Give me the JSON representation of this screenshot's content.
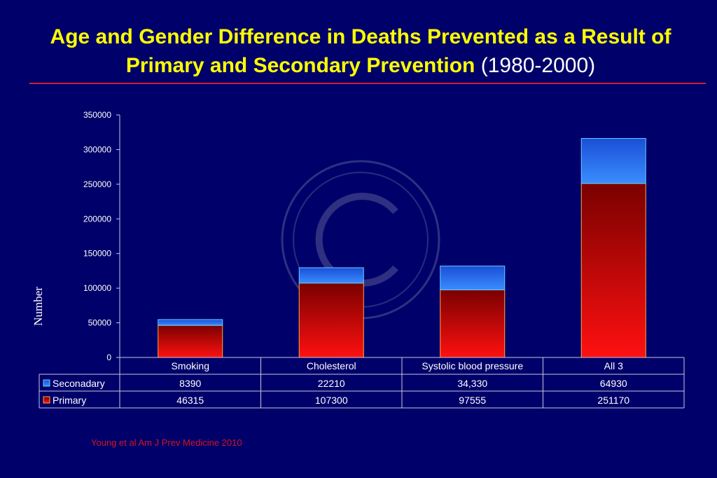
{
  "slide": {
    "title_main": "Age and Gender Difference in Deaths Prevented as a Result of Primary and Secondary Prevention",
    "title_years": "(1980-2000)",
    "citation": "Young et al Am J Prev Medicine 2010"
  },
  "colors": {
    "background": "#00006a",
    "title": "#ffff00",
    "rule": "#d0202a",
    "primary_top": "#7a0000",
    "primary_bottom": "#ff1010",
    "secondary_top": "#1a4fd6",
    "secondary_bottom": "#3a8cff",
    "citation": "#d4141e"
  },
  "chart_data": {
    "type": "bar",
    "stacked": true,
    "ylabel": "Number",
    "ylim": [
      0,
      350000
    ],
    "yticks": [
      "0",
      "50000",
      "100000",
      "150000",
      "200000",
      "250000",
      "300000",
      "350000"
    ],
    "categories": [
      "Smoking",
      "Cholesterol",
      "Systolic blood pressure",
      "All 3"
    ],
    "series": [
      {
        "name": "Primary",
        "values": [
          46315,
          107300,
          97555,
          251170
        ],
        "labels": [
          "46315",
          "107300",
          "97555",
          "251170"
        ]
      },
      {
        "name": "Seconadary",
        "values": [
          8390,
          22210,
          34330,
          64930
        ],
        "labels": [
          "8390",
          "22210",
          "34,330",
          "64930"
        ]
      }
    ],
    "data_table_below": true
  }
}
